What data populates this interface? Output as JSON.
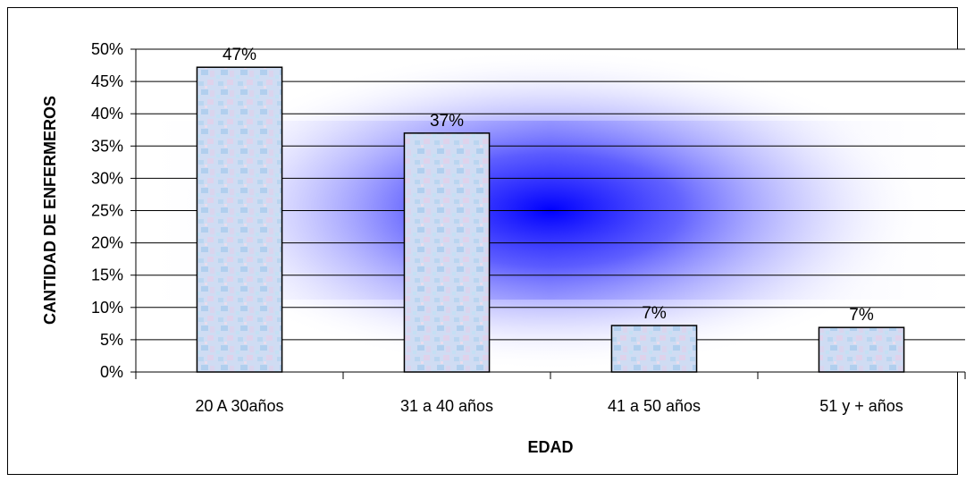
{
  "chart_data": {
    "type": "bar",
    "categories": [
      "20 A 30años",
      "31 a 40 años",
      "41 a 50 años",
      "51 y + años"
    ],
    "values": [
      47.2,
      37.0,
      7.2,
      6.9
    ],
    "data_labels": [
      "47%",
      "37%",
      "7%",
      "7%"
    ],
    "xlabel": "EDAD",
    "ylabel": "CANTIDAD DE ENFERMEROS",
    "ylim": [
      0,
      50
    ],
    "yticks": [
      0,
      5,
      10,
      15,
      20,
      25,
      30,
      35,
      40,
      45,
      50
    ],
    "ytick_labels": [
      "0%",
      "5%",
      "10%",
      "15%",
      "20%",
      "25%",
      "30%",
      "35%",
      "40%",
      "45%",
      "50%"
    ],
    "grid": true,
    "legend": "none"
  },
  "colors": {
    "plot_glow": "#0000ff",
    "bar_fill": "#c9d8f2",
    "bar_stroke": "#000000",
    "gridline": "#000000"
  }
}
